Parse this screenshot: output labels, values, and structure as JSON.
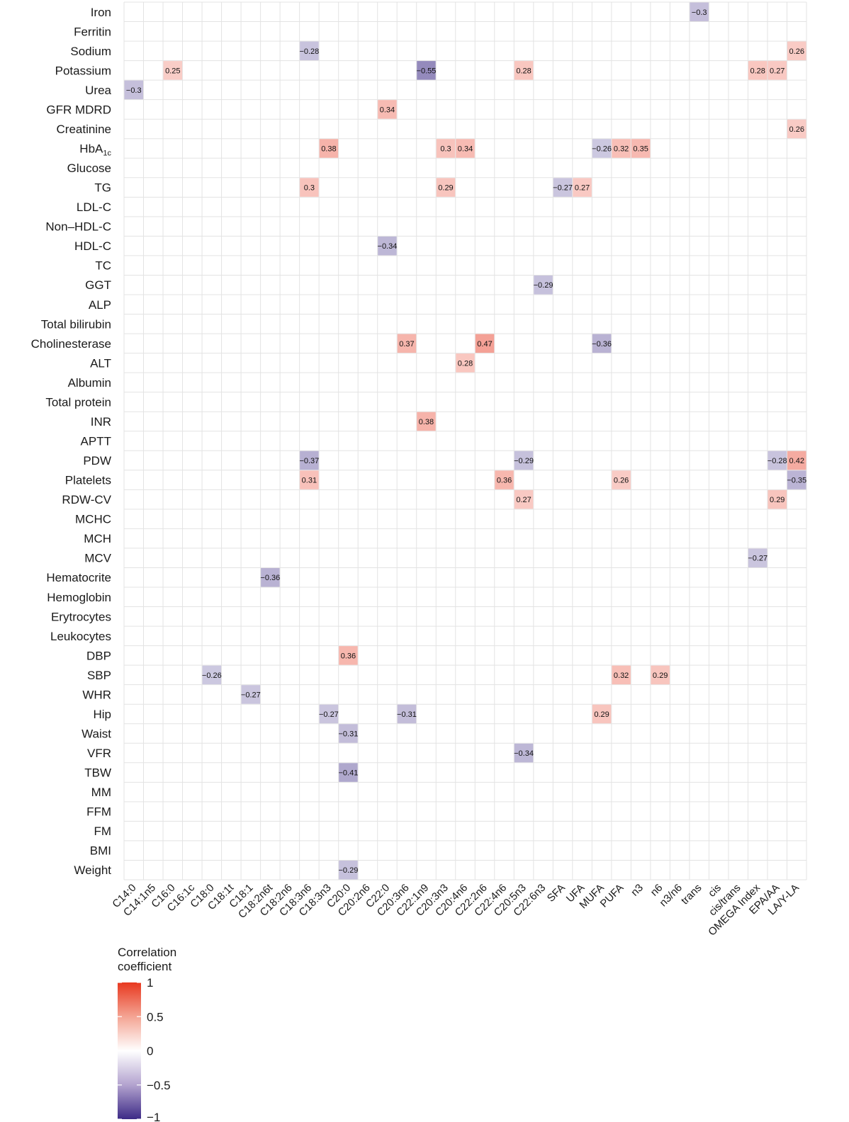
{
  "chart_data": {
    "type": "heatmap",
    "title": "",
    "xlabel": "",
    "ylabel": "",
    "columns": [
      "C14:0",
      "C14:1n5",
      "C16:0",
      "C16:1c",
      "C18:0",
      "C18:1t",
      "C18:1",
      "C18:2n6t",
      "C18:2n6",
      "C18:3n6",
      "C18:3n3",
      "C20:0",
      "C20:2n6",
      "C22:0",
      "C20:3n6",
      "C22:1n9",
      "C20:3n3",
      "C20:4n6",
      "C22:2n6",
      "C22:4n6",
      "C20:5n3",
      "C22:6n3",
      "SFA",
      "UFA",
      "MUFA",
      "PUFA",
      "n3",
      "n6",
      "n3/n6",
      "trans",
      "cis",
      "cis/trans",
      "OMEGA Index",
      "EPA/AA",
      "LA/Y-LA"
    ],
    "rows": [
      "Iron",
      "Ferritin",
      "Sodium",
      "Potassium",
      "Urea",
      "GFR MDRD",
      "Creatinine",
      "HbA1c",
      "Glucose",
      "TG",
      "LDL-C",
      "Non–HDL-C",
      "HDL-C",
      "TC",
      "GGT",
      "ALP",
      "Total bilirubin",
      "Cholinesterase",
      "ALT",
      "Albumin",
      "Total protein",
      "INR",
      "APTT",
      "PDW",
      "Platelets",
      "RDW-CV",
      "MCHC",
      "MCH",
      "MCV",
      "Hematocrite",
      "Hemoglobin",
      "Erytrocytes",
      "Leukocytes",
      "DBP",
      "SBP",
      "WHR",
      "Hip",
      "Waist",
      "VFR",
      "TBW",
      "MM",
      "FFM",
      "FM",
      "BMI",
      "Weight"
    ],
    "cells": [
      {
        "row": "Iron",
        "col": "trans",
        "value": -0.3,
        "label": "−0.3"
      },
      {
        "row": "Sodium",
        "col": "C18:3n6",
        "value": -0.28,
        "label": "−0.28"
      },
      {
        "row": "Sodium",
        "col": "LA/Y-LA",
        "value": 0.26,
        "label": "0.26"
      },
      {
        "row": "Potassium",
        "col": "C16:0",
        "value": 0.25,
        "label": "0.25"
      },
      {
        "row": "Potassium",
        "col": "C22:1n9",
        "value": -0.55,
        "label": "−0.55"
      },
      {
        "row": "Potassium",
        "col": "C20:5n3",
        "value": 0.28,
        "label": "0.28"
      },
      {
        "row": "Potassium",
        "col": "OMEGA Index",
        "value": 0.28,
        "label": "0.28"
      },
      {
        "row": "Potassium",
        "col": "EPA/AA",
        "value": 0.27,
        "label": "0.27"
      },
      {
        "row": "Urea",
        "col": "C14:0",
        "value": -0.3,
        "label": "−0.3"
      },
      {
        "row": "GFR MDRD",
        "col": "C22:0",
        "value": 0.34,
        "label": "0.34"
      },
      {
        "row": "Creatinine",
        "col": "LA/Y-LA",
        "value": 0.26,
        "label": "0.26"
      },
      {
        "row": "HbA1c",
        "col": "C18:3n3",
        "value": 0.38,
        "label": "0.38"
      },
      {
        "row": "HbA1c",
        "col": "C20:3n3",
        "value": 0.3,
        "label": "0.3"
      },
      {
        "row": "HbA1c",
        "col": "C20:4n6",
        "value": 0.34,
        "label": "0.34"
      },
      {
        "row": "HbA1c",
        "col": "MUFA",
        "value": -0.26,
        "label": "−0.26"
      },
      {
        "row": "HbA1c",
        "col": "PUFA",
        "value": 0.32,
        "label": "0.32"
      },
      {
        "row": "HbA1c",
        "col": "n3",
        "value": 0.35,
        "label": "0.35"
      },
      {
        "row": "TG",
        "col": "C18:3n6",
        "value": 0.3,
        "label": "0.3"
      },
      {
        "row": "TG",
        "col": "C20:3n3",
        "value": 0.29,
        "label": "0.29"
      },
      {
        "row": "TG",
        "col": "SFA",
        "value": -0.27,
        "label": "−0.27"
      },
      {
        "row": "TG",
        "col": "UFA",
        "value": 0.27,
        "label": "0.27"
      },
      {
        "row": "HDL-C",
        "col": "C22:0",
        "value": -0.34,
        "label": "−0.34"
      },
      {
        "row": "GGT",
        "col": "C22:6n3",
        "value": -0.29,
        "label": "−0.29"
      },
      {
        "row": "Cholinesterase",
        "col": "C20:3n6",
        "value": 0.37,
        "label": "0.37"
      },
      {
        "row": "Cholinesterase",
        "col": "C22:2n6",
        "value": 0.47,
        "label": "0.47"
      },
      {
        "row": "Cholinesterase",
        "col": "MUFA",
        "value": -0.36,
        "label": "−0.36"
      },
      {
        "row": "ALT",
        "col": "C20:4n6",
        "value": 0.28,
        "label": "0.28"
      },
      {
        "row": "INR",
        "col": "C22:1n9",
        "value": 0.38,
        "label": "0.38"
      },
      {
        "row": "PDW",
        "col": "C18:3n6",
        "value": -0.37,
        "label": "−0.37"
      },
      {
        "row": "PDW",
        "col": "C20:5n3",
        "value": -0.29,
        "label": "−0.29"
      },
      {
        "row": "PDW",
        "col": "EPA/AA",
        "value": -0.28,
        "label": "−0.28"
      },
      {
        "row": "PDW",
        "col": "LA/Y-LA",
        "value": 0.42,
        "label": "0.42"
      },
      {
        "row": "Platelets",
        "col": "C18:3n6",
        "value": 0.31,
        "label": "0.31"
      },
      {
        "row": "Platelets",
        "col": "C22:4n6",
        "value": 0.36,
        "label": "0.36"
      },
      {
        "row": "Platelets",
        "col": "PUFA",
        "value": 0.26,
        "label": "0.26"
      },
      {
        "row": "Platelets",
        "col": "LA/Y-LA",
        "value": -0.35,
        "label": "−0.35"
      },
      {
        "row": "RDW-CV",
        "col": "C20:5n3",
        "value": 0.27,
        "label": "0.27"
      },
      {
        "row": "RDW-CV",
        "col": "EPA/AA",
        "value": 0.29,
        "label": "0.29"
      },
      {
        "row": "MCV",
        "col": "OMEGA Index",
        "value": -0.27,
        "label": "−0.27"
      },
      {
        "row": "Hematocrite",
        "col": "C18:2n6t",
        "value": -0.36,
        "label": "−0.36"
      },
      {
        "row": "DBP",
        "col": "C20:0",
        "value": 0.36,
        "label": "0.36"
      },
      {
        "row": "SBP",
        "col": "C18:0",
        "value": -0.26,
        "label": "−0.26"
      },
      {
        "row": "SBP",
        "col": "PUFA",
        "value": 0.32,
        "label": "0.32"
      },
      {
        "row": "SBP",
        "col": "n6",
        "value": 0.29,
        "label": "0.29"
      },
      {
        "row": "WHR",
        "col": "C18:1",
        "value": -0.27,
        "label": "−0.27"
      },
      {
        "row": "Hip",
        "col": "C18:3n3",
        "value": -0.27,
        "label": "−0.27"
      },
      {
        "row": "Hip",
        "col": "C20:3n6",
        "value": -0.31,
        "label": "−0.31"
      },
      {
        "row": "Hip",
        "col": "MUFA",
        "value": 0.29,
        "label": "0.29"
      },
      {
        "row": "Waist",
        "col": "C20:0",
        "value": -0.31,
        "label": "−0.31"
      },
      {
        "row": "VFR",
        "col": "C20:5n3",
        "value": -0.34,
        "label": "−0.34"
      },
      {
        "row": "TBW",
        "col": "C20:0",
        "value": -0.41,
        "label": "−0.41"
      },
      {
        "row": "Weight",
        "col": "C20:0",
        "value": -0.29,
        "label": "−0.29"
      }
    ],
    "legend": {
      "title_lines": [
        "Correlation",
        "coefficient"
      ],
      "ticks": [
        {
          "value": 1,
          "label": "1"
        },
        {
          "value": 0.5,
          "label": "0.5"
        },
        {
          "value": 0,
          "label": "0"
        },
        {
          "value": -0.5,
          "label": "−0.5"
        },
        {
          "value": -1,
          "label": "−1"
        }
      ],
      "range": [
        -1,
        1
      ],
      "placement": "bottom-left"
    },
    "colors": {
      "high": "#e8381f",
      "mid": "#ffffff",
      "low": "#3c2a86",
      "grid": "#e3e3e3"
    }
  }
}
